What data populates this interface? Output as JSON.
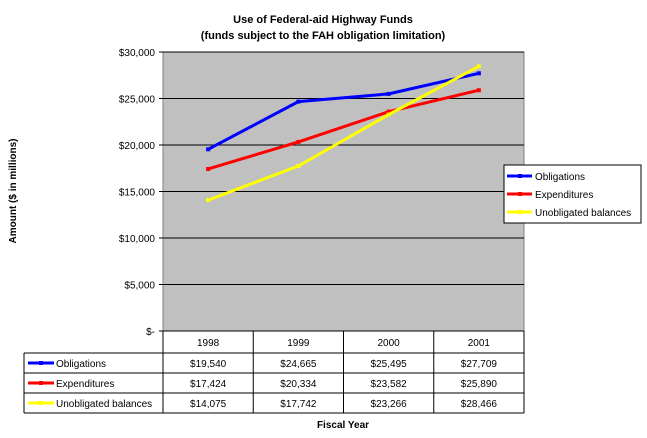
{
  "chart_data": {
    "type": "line",
    "title": "Use of Federal-aid Highway Funds",
    "subtitle": "(funds subject to the FAH obligation limitation)",
    "xlabel": "Fiscal Year",
    "ylabel": "Amount ($ in millions)",
    "categories": [
      "1998",
      "1999",
      "2000",
      "2001"
    ],
    "ylim": [
      0,
      30000
    ],
    "yticks": [
      0,
      5000,
      10000,
      15000,
      20000,
      25000,
      30000
    ],
    "ytick_labels": [
      "$-",
      "$5,000",
      "$10,000",
      "$15,000",
      "$20,000",
      "$25,000",
      "$30,000"
    ],
    "grid": "horizontal",
    "legend_position": "right",
    "series": [
      {
        "name": "Obligations",
        "color": "#0000ff",
        "values": [
          19540,
          24665,
          25495,
          27709
        ],
        "labels": [
          "$19,540",
          "$24,665",
          "$25,495",
          "$27,709"
        ]
      },
      {
        "name": "Expenditures",
        "color": "#ff0000",
        "values": [
          17424,
          20334,
          23582,
          25890
        ],
        "labels": [
          "$17,424",
          "$20,334",
          "$23,582",
          "$25,890"
        ]
      },
      {
        "name": "Unobligated balances",
        "color": "#ffff00",
        "values": [
          14075,
          17742,
          23266,
          28466
        ],
        "labels": [
          "$14,075",
          "$17,742",
          "$23,266",
          "$28,466"
        ]
      }
    ],
    "plot_background": "#c0c0c0"
  }
}
